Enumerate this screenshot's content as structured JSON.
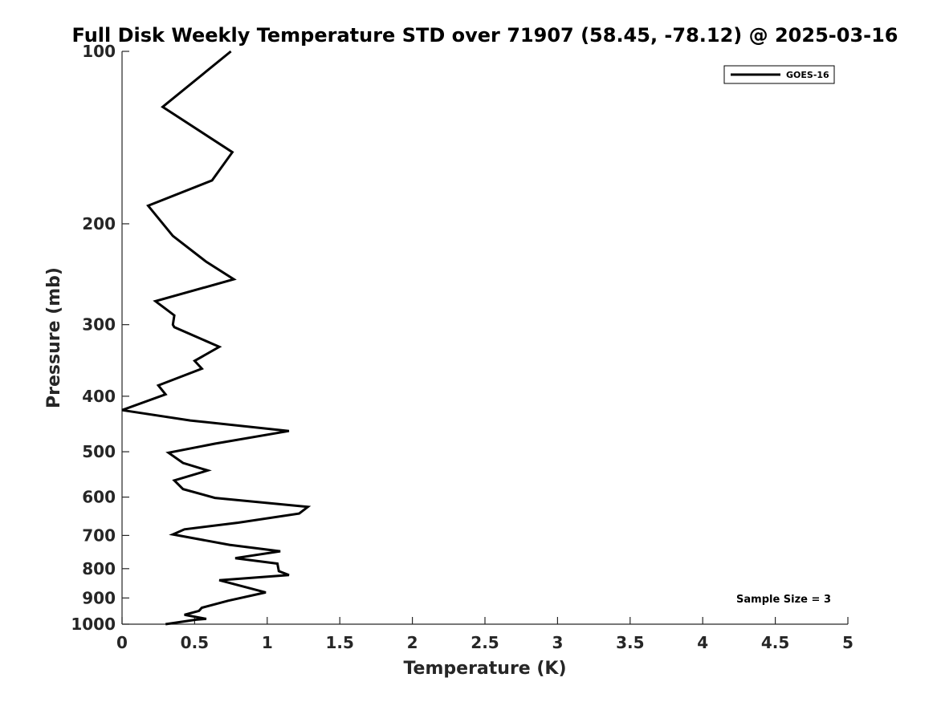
{
  "chart_data": {
    "type": "line",
    "title": "Full Disk Weekly Temperature STD over 71907 (58.45, -78.12) @ 2025-03-16",
    "xlabel": "Temperature (K)",
    "ylabel": "Pressure (mb)",
    "xlim": [
      0,
      5
    ],
    "ylim": [
      100,
      1000
    ],
    "y_scale": "log",
    "y_reversed": true,
    "xticks": [
      0,
      0.5,
      1,
      1.5,
      2,
      2.5,
      3,
      3.5,
      4,
      4.5,
      5
    ],
    "xtick_labels": [
      "0",
      "0.5",
      "1",
      "1.5",
      "2",
      "2.5",
      "3",
      "3.5",
      "4",
      "4.5",
      "5"
    ],
    "yticks": [
      100,
      200,
      300,
      400,
      500,
      600,
      700,
      800,
      900,
      1000
    ],
    "ytick_labels": [
      "100",
      "200",
      "300",
      "400",
      "500",
      "600",
      "700",
      "800",
      "900",
      "1000"
    ],
    "grid": false,
    "legend_position": "top-right",
    "annotation": "Sample Size = 3",
    "series": [
      {
        "name": "GOES-16",
        "color": "#000000",
        "points": [
          [
            0.75,
            100
          ],
          [
            0.28,
            125
          ],
          [
            0.76,
            150
          ],
          [
            0.62,
            168
          ],
          [
            0.18,
            186
          ],
          [
            0.35,
            210
          ],
          [
            0.58,
            233
          ],
          [
            0.77,
            250
          ],
          [
            0.23,
            273
          ],
          [
            0.36,
            289
          ],
          [
            0.35,
            300
          ],
          [
            0.36,
            303
          ],
          [
            0.67,
            328
          ],
          [
            0.5,
            347
          ],
          [
            0.55,
            358
          ],
          [
            0.25,
            383
          ],
          [
            0.3,
            397
          ],
          [
            0.0,
            423
          ],
          [
            0.47,
            441
          ],
          [
            1.15,
            460
          ],
          [
            0.64,
            484
          ],
          [
            0.32,
            502
          ],
          [
            0.42,
            523
          ],
          [
            0.59,
            539
          ],
          [
            0.36,
            561
          ],
          [
            0.42,
            581
          ],
          [
            0.64,
            602
          ],
          [
            1.28,
            624
          ],
          [
            1.22,
            641
          ],
          [
            0.8,
            665
          ],
          [
            0.43,
            683
          ],
          [
            0.35,
            697
          ],
          [
            0.74,
            727
          ],
          [
            1.09,
            746
          ],
          [
            0.78,
            767
          ],
          [
            1.07,
            784
          ],
          [
            1.08,
            808
          ],
          [
            1.15,
            821
          ],
          [
            0.67,
            838
          ],
          [
            0.99,
            880
          ],
          [
            0.73,
            910
          ],
          [
            0.55,
            936
          ],
          [
            0.53,
            948
          ],
          [
            0.43,
            963
          ],
          [
            0.58,
            979
          ],
          [
            0.51,
            982
          ],
          [
            0.3,
            1000
          ]
        ]
      }
    ]
  }
}
